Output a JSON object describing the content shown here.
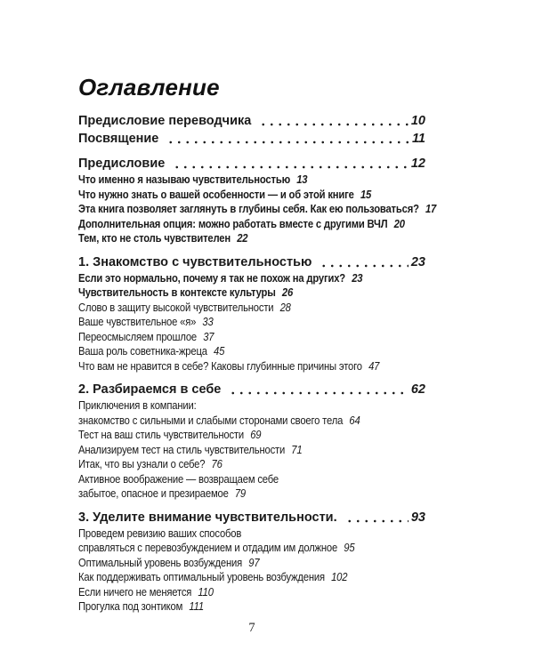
{
  "page": {
    "title": "Оглавление",
    "footer_page_number": "7"
  },
  "colors": {
    "text": "#1a1a1a",
    "background": "#ffffff"
  },
  "toc": {
    "sections": [
      {
        "name": "front-matter",
        "items": [
          {
            "style": "chapter",
            "label": "Предисловие переводчика",
            "page": "10"
          },
          {
            "style": "chapter",
            "label": "Посвящение",
            "page": "11"
          }
        ]
      },
      {
        "name": "preface",
        "items": [
          {
            "style": "chapter",
            "label": "Предисловие",
            "page": "12"
          },
          {
            "style": "sub",
            "label": "Что именно я называю чувствительностью",
            "page": "13"
          },
          {
            "style": "sub",
            "label": "Что нужно знать о вашей особенности — и об этой книге",
            "page": "15"
          },
          {
            "style": "sub",
            "label": "Эта книга позволяет заглянуть в глубины себя. Как ею пользоваться?",
            "page": "17"
          },
          {
            "style": "sub",
            "label": "Дополнительная опция: можно работать вместе с другими ВЧЛ",
            "page": "20"
          },
          {
            "style": "sub",
            "label": "Тем, кто не столь чувствителен",
            "page": "22"
          }
        ]
      },
      {
        "name": "chapter-1",
        "items": [
          {
            "style": "chapter",
            "label": "1. Знакомство с чувствительностью",
            "page": "23"
          },
          {
            "style": "sub",
            "label": "Если это нормально, почему я так не похож на других?",
            "page": "23"
          },
          {
            "style": "sub",
            "label": "Чувствительность в контексте культуры",
            "page": "26"
          },
          {
            "style": "sub-light",
            "label": "Слово в защиту высокой чувствительности",
            "page": "28"
          },
          {
            "style": "sub-light",
            "label": "Ваше чувствительное «я»",
            "page": "33"
          },
          {
            "style": "sub-light",
            "label": "Переосмысляем прошлое",
            "page": "37"
          },
          {
            "style": "sub-light",
            "label": "Ваша роль советника-жреца",
            "page": "45"
          },
          {
            "style": "sub-light",
            "label": "Что вам не нравится в себе? Каковы глубинные причины этого",
            "page": "47"
          }
        ]
      },
      {
        "name": "chapter-2",
        "items": [
          {
            "style": "chapter",
            "label": "2. Разбираемся в себе",
            "page": "62"
          },
          {
            "style": "sub-light",
            "label": "Приключения в компании:",
            "page": null
          },
          {
            "style": "sub-light",
            "label": "знакомство с сильными и слабыми сторонами своего тела",
            "page": "64"
          },
          {
            "style": "sub-light",
            "label": "Тест на ваш стиль чувствительности",
            "page": "69"
          },
          {
            "style": "sub-light",
            "label": "Анализируем тест на стиль чувствительности",
            "page": "71"
          },
          {
            "style": "sub-light",
            "label": "Итак, что вы узнали о себе?",
            "page": "76"
          },
          {
            "style": "sub-light",
            "label": "Активное воображение — возвращаем себе",
            "page": null
          },
          {
            "style": "sub-light",
            "label": "забытое, опасное и презираемое",
            "page": "79"
          }
        ]
      },
      {
        "name": "chapter-3",
        "items": [
          {
            "style": "chapter",
            "label": "3. Уделите внимание чувствительности.",
            "page": "93"
          },
          {
            "style": "sub-light",
            "label": "Проведем ревизию ваших способов",
            "page": null
          },
          {
            "style": "sub-light",
            "label": "справляться с перевозбуждением и отдадим им должное",
            "page": "95"
          },
          {
            "style": "sub-light",
            "label": "Оптимальный уровень возбуждения",
            "page": "97"
          },
          {
            "style": "sub-light",
            "label": "Как поддерживать оптимальный уровень возбуждения",
            "page": "102"
          },
          {
            "style": "sub-light",
            "label": "Если ничего не меняется",
            "page": "110"
          },
          {
            "style": "sub-light",
            "label": "Прогулка под зонтиком",
            "page": "111"
          }
        ]
      }
    ]
  }
}
